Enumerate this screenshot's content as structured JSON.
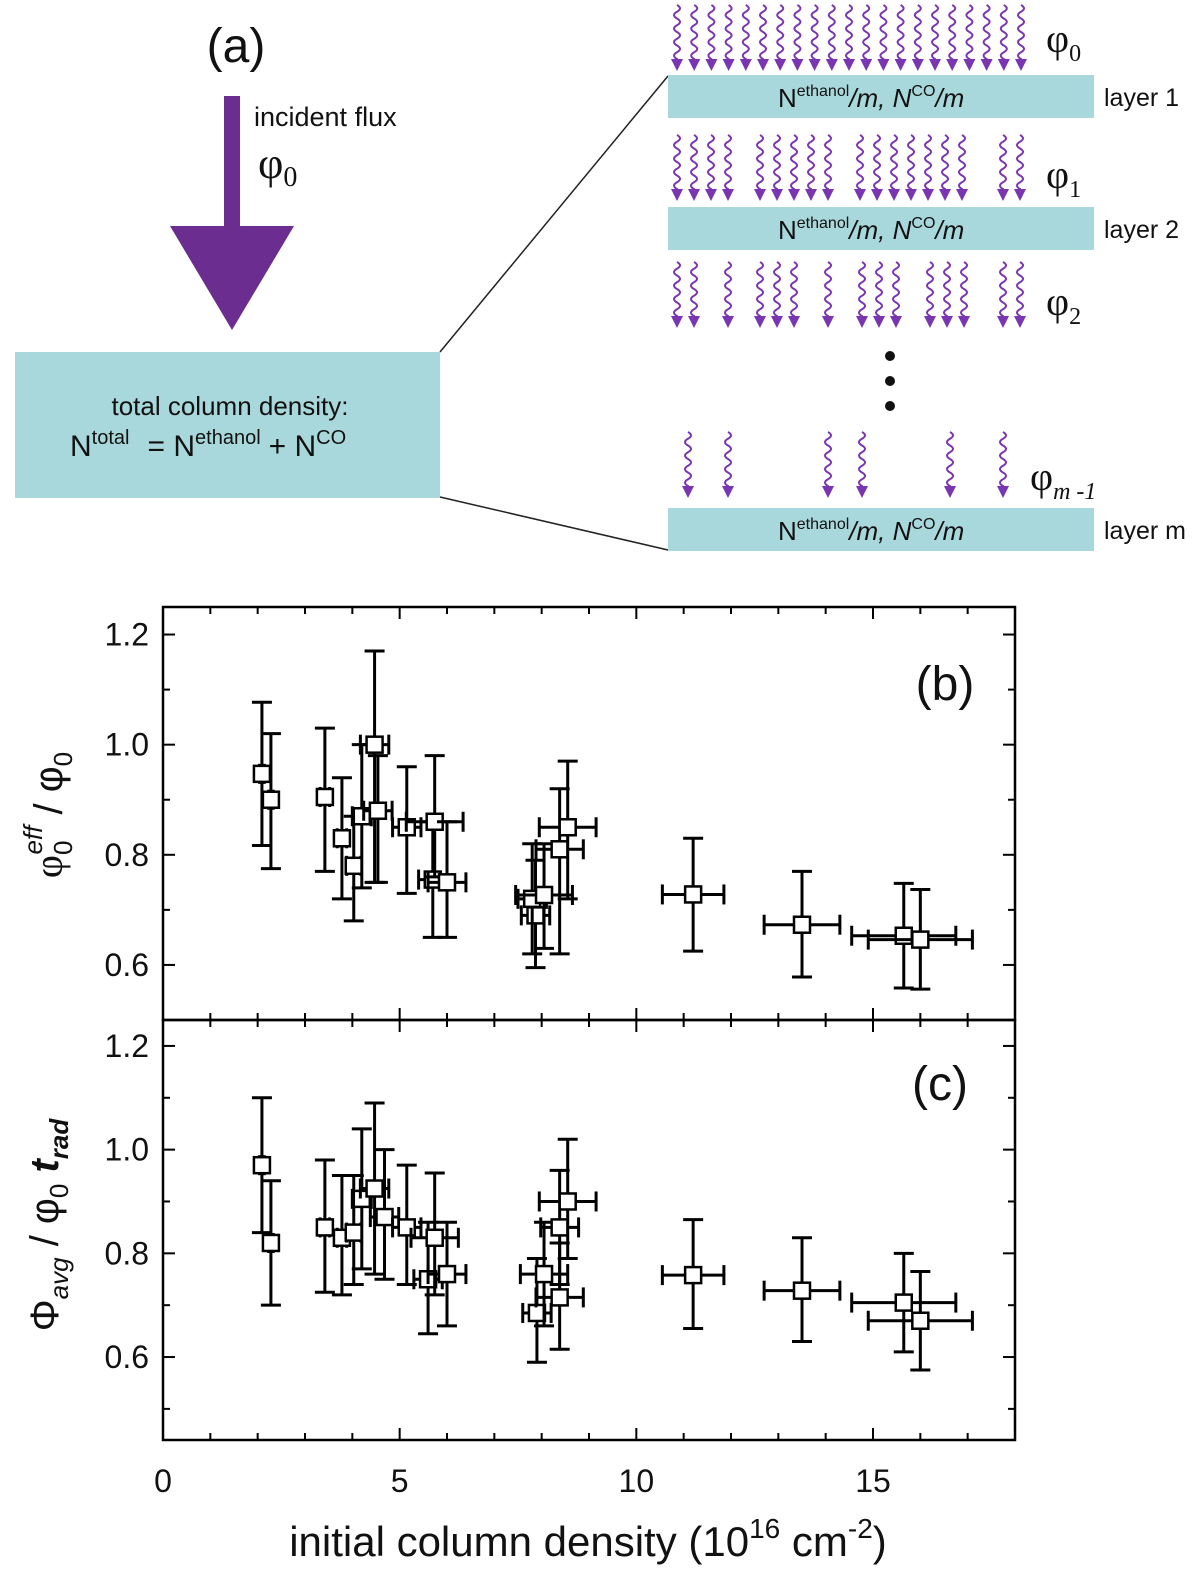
{
  "diagram": {
    "panel_label": "(a)",
    "incident_label": "incident flux",
    "phi": "φ",
    "phi0_sub": "0",
    "box_line1": "total column density:",
    "box_N": "N",
    "box_total_sup": "total",
    "box_eq": "= N",
    "box_ethanol_sup": "ethanol",
    "box_plus": "+ N",
    "box_co_sup": "CO",
    "layer_N": "N",
    "layer_ethanol_sup": "ethanol",
    "layer_m1": "/m,  N",
    "layer_co_sup": "CO",
    "layer_m2": "/m",
    "layers": [
      "layer 1",
      "layer 2",
      "layer m"
    ],
    "flux_subs": [
      "0",
      "1",
      "2",
      "m -1"
    ],
    "colors": {
      "arrow": "#6b2d8f",
      "wave": "#7a35b0",
      "box": "#a9d8dc"
    }
  },
  "chart_data": [
    {
      "type": "scatter",
      "panel_label": "(b)",
      "ylabel": "φ0eff / φ0",
      "xlim": [
        0,
        18
      ],
      "ylim": [
        0.5,
        1.25
      ],
      "xticks": [
        "0",
        "5",
        "10",
        "15"
      ],
      "yticks": [
        "0.6",
        "0.8",
        "1.0",
        "1.2"
      ],
      "marker": "open-square",
      "points": [
        {
          "x": 2.09,
          "y": 0.947,
          "ylo": 0.817,
          "yhi": 1.077,
          "xerr": 0.05
        },
        {
          "x": 2.28,
          "y": 0.9,
          "ylo": 0.775,
          "yhi": 1.02,
          "xerr": 0.05
        },
        {
          "x": 3.42,
          "y": 0.905,
          "ylo": 0.77,
          "yhi": 1.03,
          "xerr": 0.1
        },
        {
          "x": 3.78,
          "y": 0.83,
          "ylo": 0.72,
          "yhi": 0.94,
          "xerr": 0.1
        },
        {
          "x": 4.03,
          "y": 0.78,
          "ylo": 0.68,
          "yhi": 0.87,
          "xerr": 0.15
        },
        {
          "x": 4.2,
          "y": 0.87,
          "ylo": 0.74,
          "yhi": 1.0,
          "xerr": 0.2
        },
        {
          "x": 4.47,
          "y": 1.0,
          "ylo": 0.75,
          "yhi": 1.17,
          "xerr": 0.3
        },
        {
          "x": 4.54,
          "y": 0.88,
          "ylo": 0.75,
          "yhi": 0.98,
          "xerr": 0.3
        },
        {
          "x": 5.15,
          "y": 0.85,
          "ylo": 0.73,
          "yhi": 0.96,
          "xerr": 0.3
        },
        {
          "x": 5.7,
          "y": 0.755,
          "ylo": 0.65,
          "yhi": 0.86,
          "xerr": 0.3
        },
        {
          "x": 5.74,
          "y": 0.86,
          "ylo": 0.76,
          "yhi": 0.98,
          "xerr": 0.6
        },
        {
          "x": 6.0,
          "y": 0.75,
          "ylo": 0.65,
          "yhi": 0.86,
          "xerr": 0.4
        },
        {
          "x": 7.87,
          "y": 0.69,
          "ylo": 0.595,
          "yhi": 0.79,
          "xerr": 0.3
        },
        {
          "x": 7.8,
          "y": 0.72,
          "ylo": 0.62,
          "yhi": 0.82,
          "xerr": 0.3
        },
        {
          "x": 8.05,
          "y": 0.727,
          "ylo": 0.63,
          "yhi": 0.82,
          "xerr": 0.6
        },
        {
          "x": 8.38,
          "y": 0.81,
          "ylo": 0.62,
          "yhi": 0.92,
          "xerr": 0.5
        },
        {
          "x": 8.55,
          "y": 0.85,
          "ylo": 0.72,
          "yhi": 0.97,
          "xerr": 0.6
        },
        {
          "x": 11.2,
          "y": 0.728,
          "ylo": 0.625,
          "yhi": 0.83,
          "xerr": 0.65
        },
        {
          "x": 13.5,
          "y": 0.673,
          "ylo": 0.578,
          "yhi": 0.77,
          "xerr": 0.8
        },
        {
          "x": 15.65,
          "y": 0.653,
          "ylo": 0.558,
          "yhi": 0.748,
          "xerr": 1.1
        },
        {
          "x": 16.0,
          "y": 0.646,
          "ylo": 0.556,
          "yhi": 0.737,
          "xerr": 1.1
        }
      ]
    },
    {
      "type": "scatter",
      "panel_label": "(c)",
      "ylabel": "Φavg / φ0 trad",
      "xlabel": "initial column density (10^16 cm^-2)",
      "xlim": [
        0,
        18
      ],
      "ylim": [
        0.44,
        1.25
      ],
      "xticks": [
        "0",
        "5",
        "10",
        "15"
      ],
      "yticks": [
        "0.6",
        "0.8",
        "1.0",
        "1.2"
      ],
      "marker": "open-square",
      "points": [
        {
          "x": 2.09,
          "y": 0.97,
          "ylo": 0.84,
          "yhi": 1.1,
          "xerr": 0.05
        },
        {
          "x": 2.28,
          "y": 0.82,
          "ylo": 0.7,
          "yhi": 0.94,
          "xerr": 0.05
        },
        {
          "x": 3.42,
          "y": 0.85,
          "ylo": 0.725,
          "yhi": 0.98,
          "xerr": 0.1
        },
        {
          "x": 3.78,
          "y": 0.83,
          "ylo": 0.72,
          "yhi": 0.95,
          "xerr": 0.1
        },
        {
          "x": 4.03,
          "y": 0.84,
          "ylo": 0.74,
          "yhi": 0.95,
          "xerr": 0.15
        },
        {
          "x": 4.2,
          "y": 0.905,
          "ylo": 0.77,
          "yhi": 1.04,
          "xerr": 0.2
        },
        {
          "x": 4.47,
          "y": 0.925,
          "ylo": 0.76,
          "yhi": 1.09,
          "xerr": 0.3
        },
        {
          "x": 4.68,
          "y": 0.87,
          "ylo": 0.75,
          "yhi": 1.0,
          "xerr": 0.3
        },
        {
          "x": 5.15,
          "y": 0.85,
          "ylo": 0.74,
          "yhi": 0.97,
          "xerr": 0.3
        },
        {
          "x": 5.6,
          "y": 0.75,
          "ylo": 0.645,
          "yhi": 0.86,
          "xerr": 0.3
        },
        {
          "x": 5.74,
          "y": 0.83,
          "ylo": 0.72,
          "yhi": 0.955,
          "xerr": 0.5
        },
        {
          "x": 6.0,
          "y": 0.76,
          "ylo": 0.66,
          "yhi": 0.86,
          "xerr": 0.4
        },
        {
          "x": 7.9,
          "y": 0.685,
          "ylo": 0.59,
          "yhi": 0.79,
          "xerr": 0.3
        },
        {
          "x": 8.05,
          "y": 0.76,
          "ylo": 0.66,
          "yhi": 0.86,
          "xerr": 0.5
        },
        {
          "x": 8.38,
          "y": 0.715,
          "ylo": 0.615,
          "yhi": 0.82,
          "xerr": 0.5
        },
        {
          "x": 8.38,
          "y": 0.85,
          "ylo": 0.74,
          "yhi": 0.96,
          "xerr": 0.4
        },
        {
          "x": 8.55,
          "y": 0.9,
          "ylo": 0.79,
          "yhi": 1.02,
          "xerr": 0.6
        },
        {
          "x": 11.2,
          "y": 0.758,
          "ylo": 0.655,
          "yhi": 0.865,
          "xerr": 0.65
        },
        {
          "x": 13.5,
          "y": 0.728,
          "ylo": 0.63,
          "yhi": 0.83,
          "xerr": 0.8
        },
        {
          "x": 15.65,
          "y": 0.705,
          "ylo": 0.61,
          "yhi": 0.8,
          "xerr": 1.1
        },
        {
          "x": 16.0,
          "y": 0.67,
          "ylo": 0.575,
          "yhi": 0.765,
          "xerr": 1.1
        }
      ]
    }
  ],
  "axes": {
    "xlabel_main": "initial column density (10",
    "xlabel_exp": "16",
    "xlabel_unit": " cm",
    "xlabel_unit_exp": "-2",
    "xlabel_close": ")",
    "b_ylabel_phi": "φ",
    "b_ylabel_sub": "0",
    "b_ylabel_sup": "eff",
    "b_ylabel_rest": " / φ",
    "b_ylabel_rest_sub": "0",
    "c_ylabel_Phi": "Φ",
    "c_ylabel_sub": "avg",
    "c_ylabel_mid": " / φ",
    "c_ylabel_mid_sub": "0",
    "c_ylabel_t": " t",
    "c_ylabel_t_sub": "rad"
  }
}
